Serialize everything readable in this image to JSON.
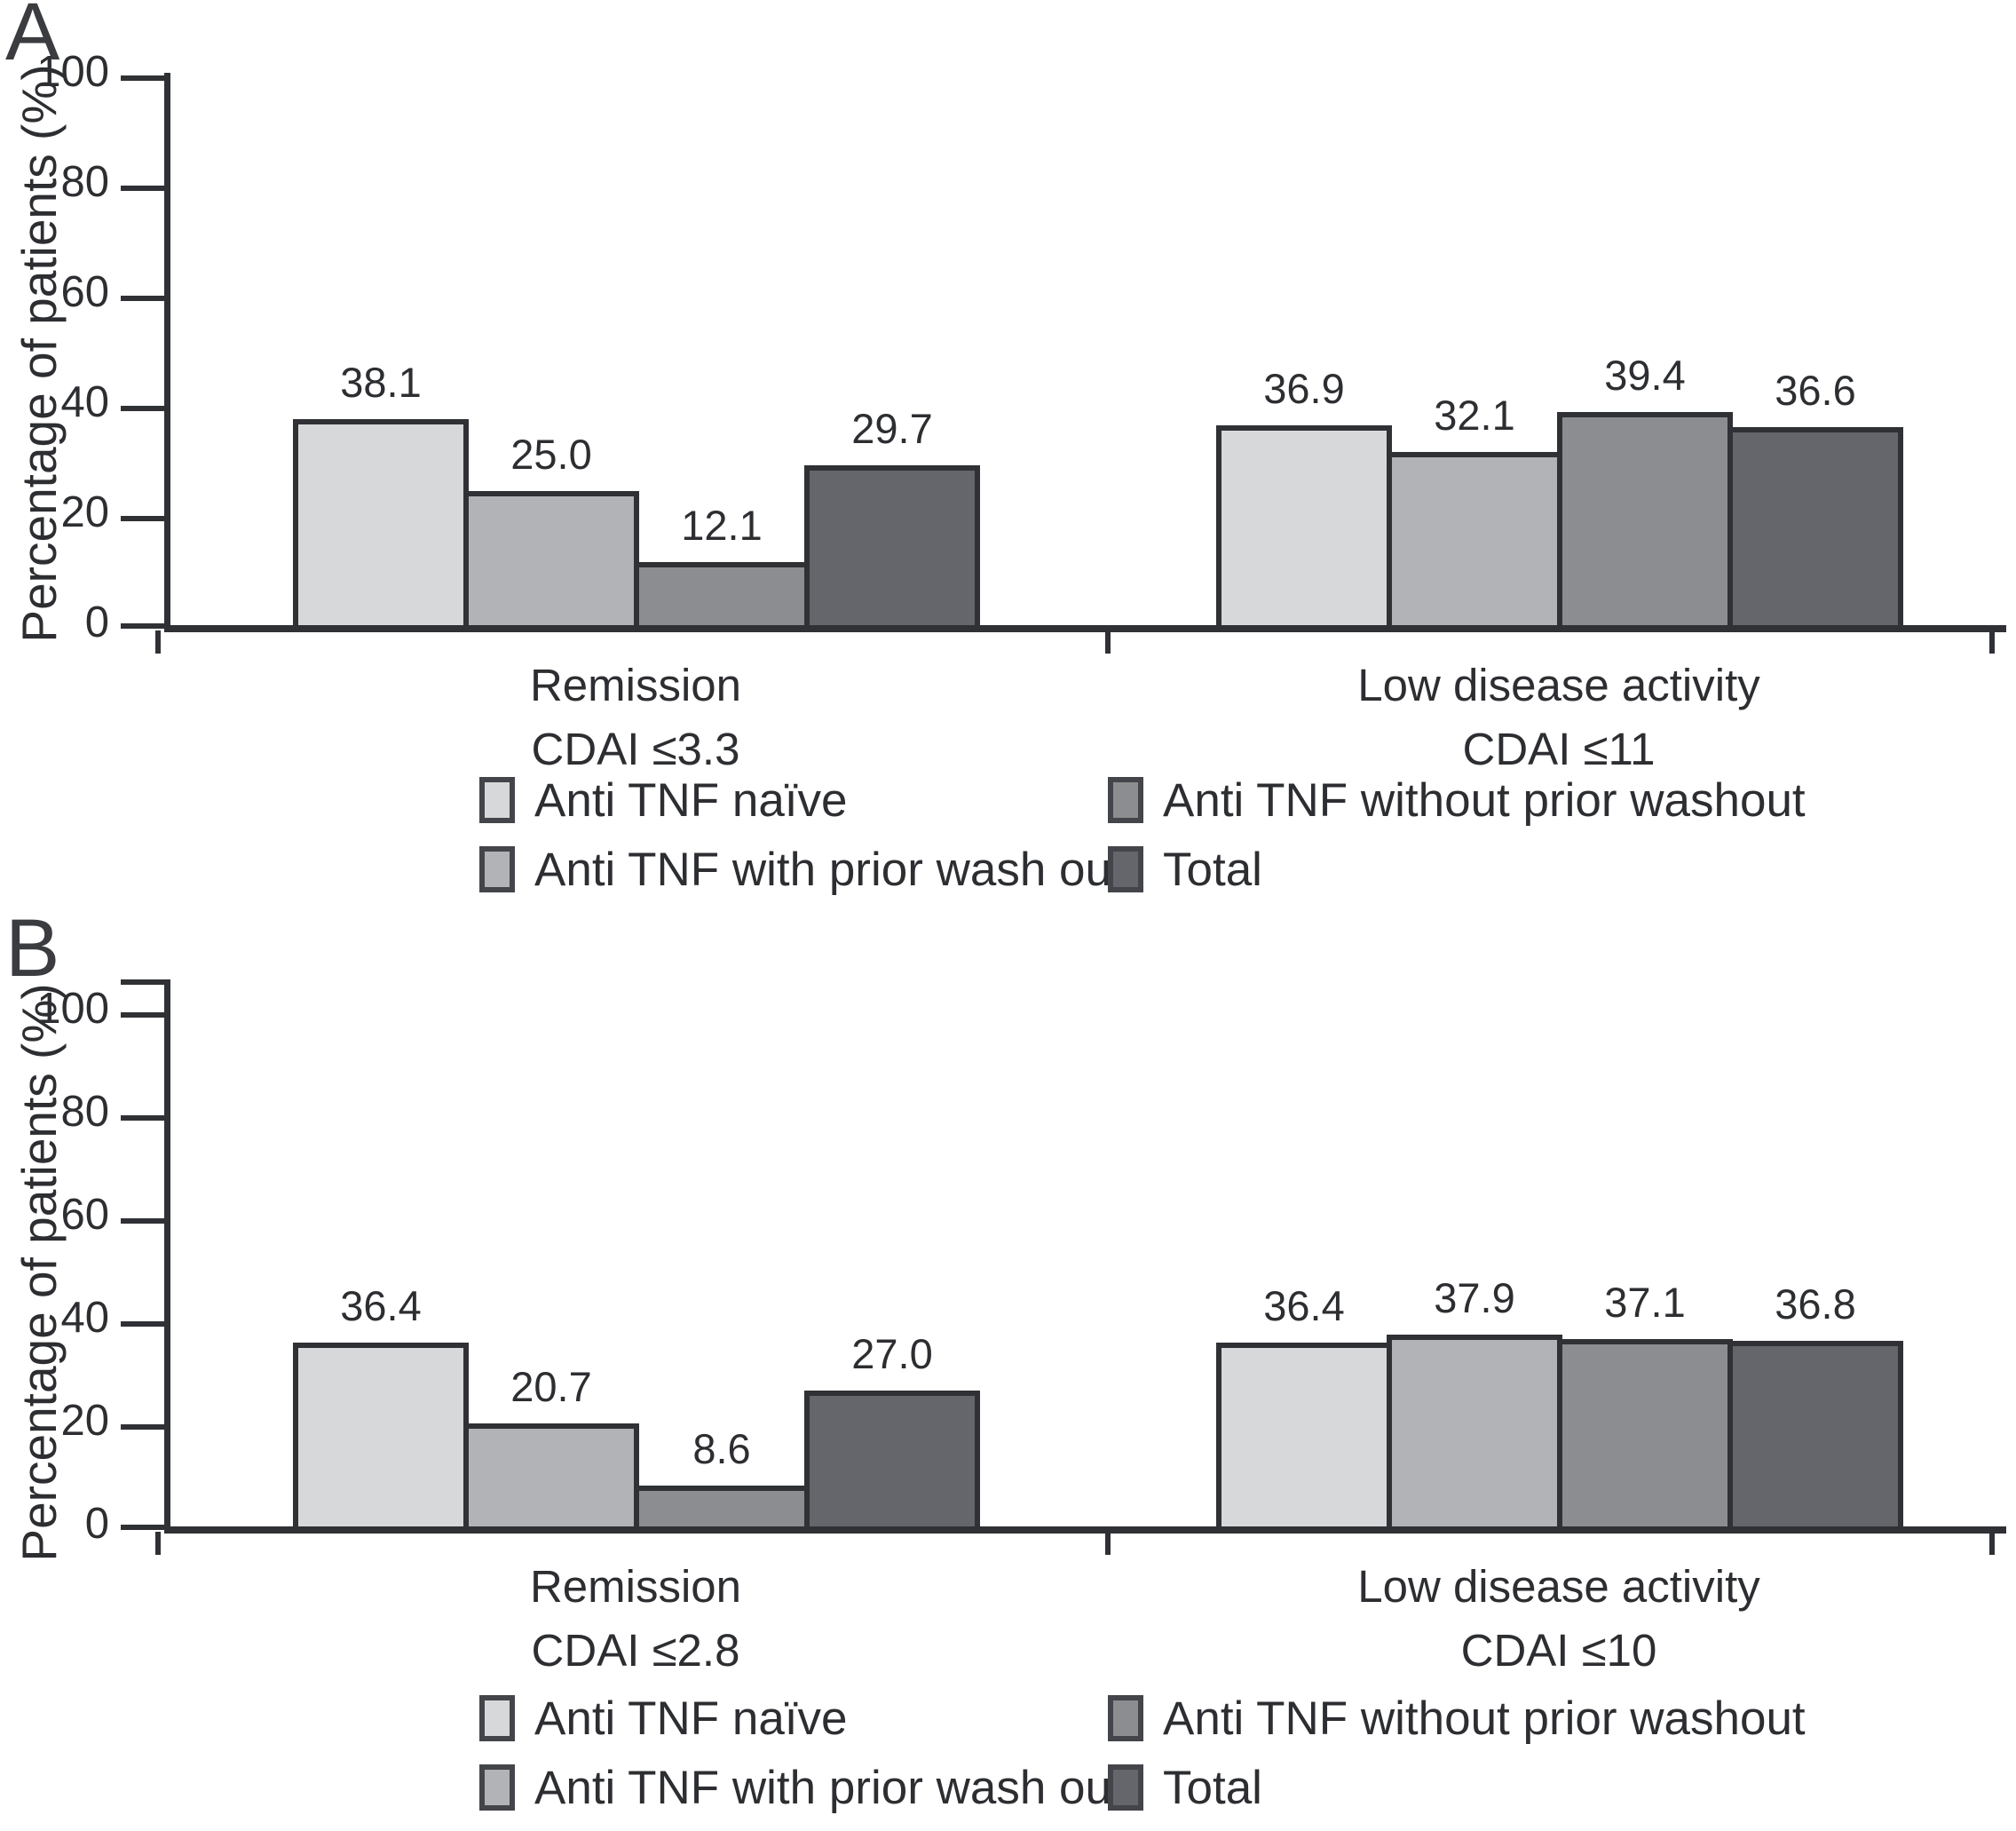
{
  "chart_data": [
    {
      "type": "bar",
      "panel_label": "A",
      "ylabel": "Percentage of patients (%)",
      "ylim": [
        0,
        100
      ],
      "yticks": [
        0,
        20,
        40,
        60,
        80,
        100
      ],
      "grid": false,
      "legend_position": "bottom",
      "value_labels": true,
      "categories": [
        "Remission CDAI ≤3.3",
        "Low disease activity CDAI ≤11"
      ],
      "categories_lines": [
        [
          "Remission",
          "CDAI ≤3.3"
        ],
        [
          "Low disease activity",
          "CDAI ≤11"
        ]
      ],
      "series": [
        {
          "name": "Anti TNF naïve",
          "color": "#d7d8da",
          "values": [
            38.1,
            36.9
          ]
        },
        {
          "name": "Anti TNF with prior wash out",
          "color": "#b1b3b6",
          "values": [
            25.0,
            32.1
          ]
        },
        {
          "name": "Anti TNF without prior washout",
          "color": "#8b8d90",
          "values": [
            12.1,
            39.4
          ]
        },
        {
          "name": "Total",
          "color": "#64666b",
          "values": [
            29.7,
            36.6
          ]
        }
      ]
    },
    {
      "type": "bar",
      "panel_label": "B",
      "ylabel": "Percentage of patients (%)",
      "ylim": [
        0,
        100
      ],
      "yticks": [
        0,
        20,
        40,
        60,
        80,
        100
      ],
      "grid": false,
      "legend_position": "bottom",
      "value_labels": true,
      "categories": [
        "Remission CDAI ≤2.8",
        "Low disease activity CDAI ≤10"
      ],
      "categories_lines": [
        [
          "Remission",
          "CDAI ≤2.8"
        ],
        [
          "Low disease activity",
          "CDAI ≤10"
        ]
      ],
      "series": [
        {
          "name": "Anti TNF naïve",
          "color": "#d7d8da",
          "values": [
            36.4,
            36.4
          ]
        },
        {
          "name": "Anti TNF with prior wash out",
          "color": "#b1b3b6",
          "values": [
            20.7,
            37.9
          ]
        },
        {
          "name": "Anti TNF without prior washout",
          "color": "#8b8d90",
          "values": [
            8.6,
            37.1
          ]
        },
        {
          "name": "Total",
          "color": "#64666b",
          "values": [
            27.0,
            36.8
          ]
        }
      ]
    }
  ],
  "style": {
    "stroke_color": "#2f3135",
    "text_color": "#2c2e31",
    "background": "#ffffff"
  }
}
